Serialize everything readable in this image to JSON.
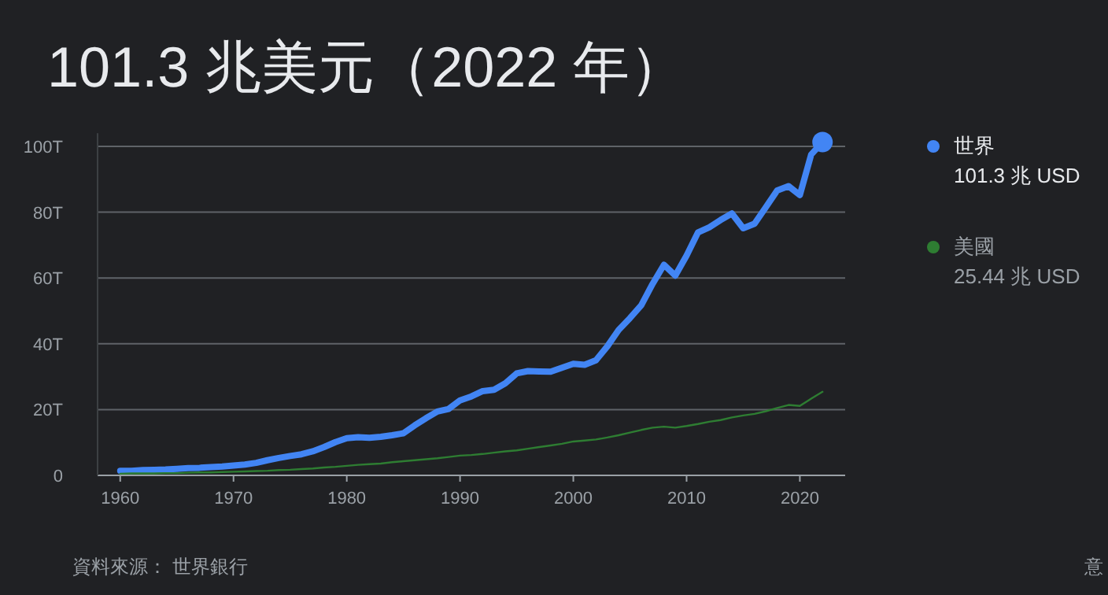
{
  "chart_data": {
    "type": "line",
    "title": "101.3 兆美元（2022 年）",
    "xlim": [
      1958,
      2024
    ],
    "xticks": [
      1960,
      1970,
      1980,
      1990,
      2000,
      2010,
      2020
    ],
    "ylim": [
      0,
      104
    ],
    "yticks": [
      0,
      {
        "value": 20,
        "label": "20T"
      },
      {
        "value": 40,
        "label": "40T"
      },
      {
        "value": 60,
        "label": "60T"
      },
      {
        "value": 80,
        "label": "80T"
      },
      {
        "value": 100,
        "label": "100T"
      }
    ],
    "grid": "y",
    "legend": "right",
    "series": [
      {
        "name": "世界",
        "color": "#4285f4",
        "x": [
          1960,
          1961,
          1962,
          1963,
          1964,
          1965,
          1966,
          1967,
          1968,
          1969,
          1970,
          1971,
          1972,
          1973,
          1974,
          1975,
          1976,
          1977,
          1978,
          1979,
          1980,
          1981,
          1982,
          1983,
          1984,
          1985,
          1986,
          1987,
          1988,
          1989,
          1990,
          1991,
          1992,
          1993,
          1994,
          1995,
          1996,
          1997,
          1998,
          1999,
          2000,
          2001,
          2002,
          2003,
          2004,
          2005,
          2006,
          2007,
          2008,
          2009,
          2010,
          2011,
          2012,
          2013,
          2014,
          2015,
          2016,
          2017,
          2018,
          2019,
          2020,
          2021,
          2022
        ],
        "values": [
          1.4,
          1.4,
          1.6,
          1.7,
          1.8,
          2.0,
          2.2,
          2.3,
          2.5,
          2.7,
          3.0,
          3.3,
          3.8,
          4.6,
          5.3,
          5.9,
          6.4,
          7.3,
          8.6,
          10.1,
          11.3,
          11.6,
          11.4,
          11.7,
          12.2,
          12.8,
          15.2,
          17.4,
          19.4,
          20.2,
          22.8,
          24.0,
          25.6,
          26.0,
          28.0,
          31.0,
          31.7,
          31.6,
          31.5,
          32.7,
          33.9,
          33.6,
          35.0,
          39.2,
          44.2,
          47.8,
          51.7,
          58.2,
          64.0,
          60.7,
          66.8,
          73.8,
          75.4,
          77.6,
          79.6,
          75.1,
          76.5,
          81.5,
          86.6,
          87.9,
          85.2,
          97.5,
          101.3
        ]
      },
      {
        "name": "美國",
        "color": "#2e7d32",
        "x": [
          1960,
          1961,
          1962,
          1963,
          1964,
          1965,
          1966,
          1967,
          1968,
          1969,
          1970,
          1971,
          1972,
          1973,
          1974,
          1975,
          1976,
          1977,
          1978,
          1979,
          1980,
          1981,
          1982,
          1983,
          1984,
          1985,
          1986,
          1987,
          1988,
          1989,
          1990,
          1991,
          1992,
          1993,
          1994,
          1995,
          1996,
          1997,
          1998,
          1999,
          2000,
          2001,
          2002,
          2003,
          2004,
          2005,
          2006,
          2007,
          2008,
          2009,
          2010,
          2011,
          2012,
          2013,
          2014,
          2015,
          2016,
          2017,
          2018,
          2019,
          2020,
          2021,
          2022
        ],
        "values": [
          0.5,
          0.6,
          0.6,
          0.6,
          0.7,
          0.7,
          0.8,
          0.9,
          0.9,
          1.0,
          1.1,
          1.2,
          1.3,
          1.4,
          1.6,
          1.7,
          1.9,
          2.1,
          2.4,
          2.6,
          2.9,
          3.2,
          3.4,
          3.6,
          4.0,
          4.3,
          4.6,
          4.9,
          5.2,
          5.6,
          6.0,
          6.2,
          6.5,
          6.9,
          7.3,
          7.6,
          8.1,
          8.6,
          9.1,
          9.6,
          10.3,
          10.6,
          10.9,
          11.5,
          12.2,
          13.0,
          13.8,
          14.5,
          14.8,
          14.5,
          15.0,
          15.6,
          16.3,
          16.8,
          17.6,
          18.2,
          18.7,
          19.5,
          20.5,
          21.4,
          21.1,
          23.3,
          25.4
        ]
      },
      {
        "type": "scatter",
        "color": "#4285f4",
        "marker": "circle",
        "x": [
          2022
        ],
        "values": [
          101.3
        ]
      }
    ],
    "annotations": [
      "資料來源： 世界銀行",
      "意",
      "101.3 兆 USD",
      "25.44 兆 USD"
    ]
  }
}
